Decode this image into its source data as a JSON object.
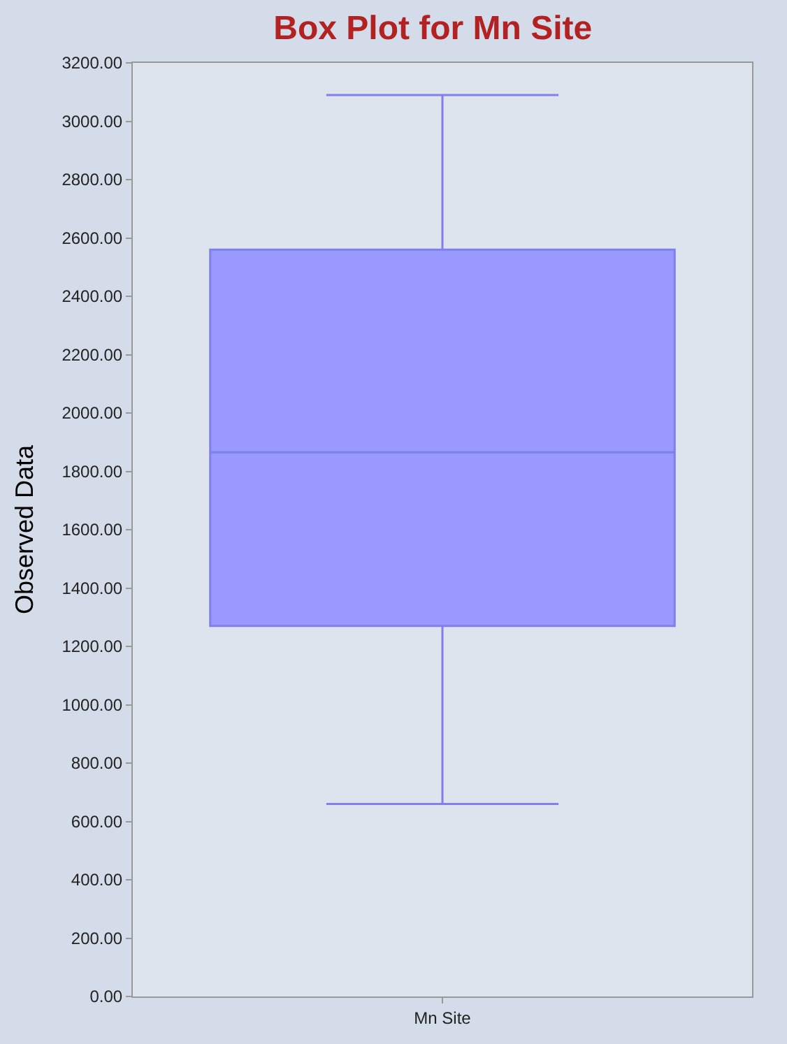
{
  "chart_data": {
    "type": "box",
    "title": "Box Plot for Mn Site",
    "ylabel": "Observed Data",
    "categories": [
      "Mn Site"
    ],
    "boxes": [
      {
        "low": 660,
        "q1": 1270,
        "median": 1865,
        "q3": 2560,
        "high": 3090
      }
    ],
    "color": "#9999ff",
    "ylim": [
      0,
      3200
    ],
    "yticks": [
      {
        "value": 0,
        "label": "0.00"
      },
      {
        "value": 200,
        "label": "200.00"
      },
      {
        "value": 400,
        "label": "400.00"
      },
      {
        "value": 600,
        "label": "600.00"
      },
      {
        "value": 800,
        "label": "800.00"
      },
      {
        "value": 1000,
        "label": "1000.00"
      },
      {
        "value": 1200,
        "label": "1200.00"
      },
      {
        "value": 1400,
        "label": "1400.00"
      },
      {
        "value": 1600,
        "label": "1600.00"
      },
      {
        "value": 1800,
        "label": "1800.00"
      },
      {
        "value": 2000,
        "label": "2000.00"
      },
      {
        "value": 2200,
        "label": "2200.00"
      },
      {
        "value": 2400,
        "label": "2400.00"
      },
      {
        "value": 2600,
        "label": "2600.00"
      },
      {
        "value": 2800,
        "label": "2800.00"
      },
      {
        "value": 3000,
        "label": "3000.00"
      },
      {
        "value": 3200,
        "label": "3200.00"
      }
    ],
    "grid": false,
    "legend": false
  }
}
